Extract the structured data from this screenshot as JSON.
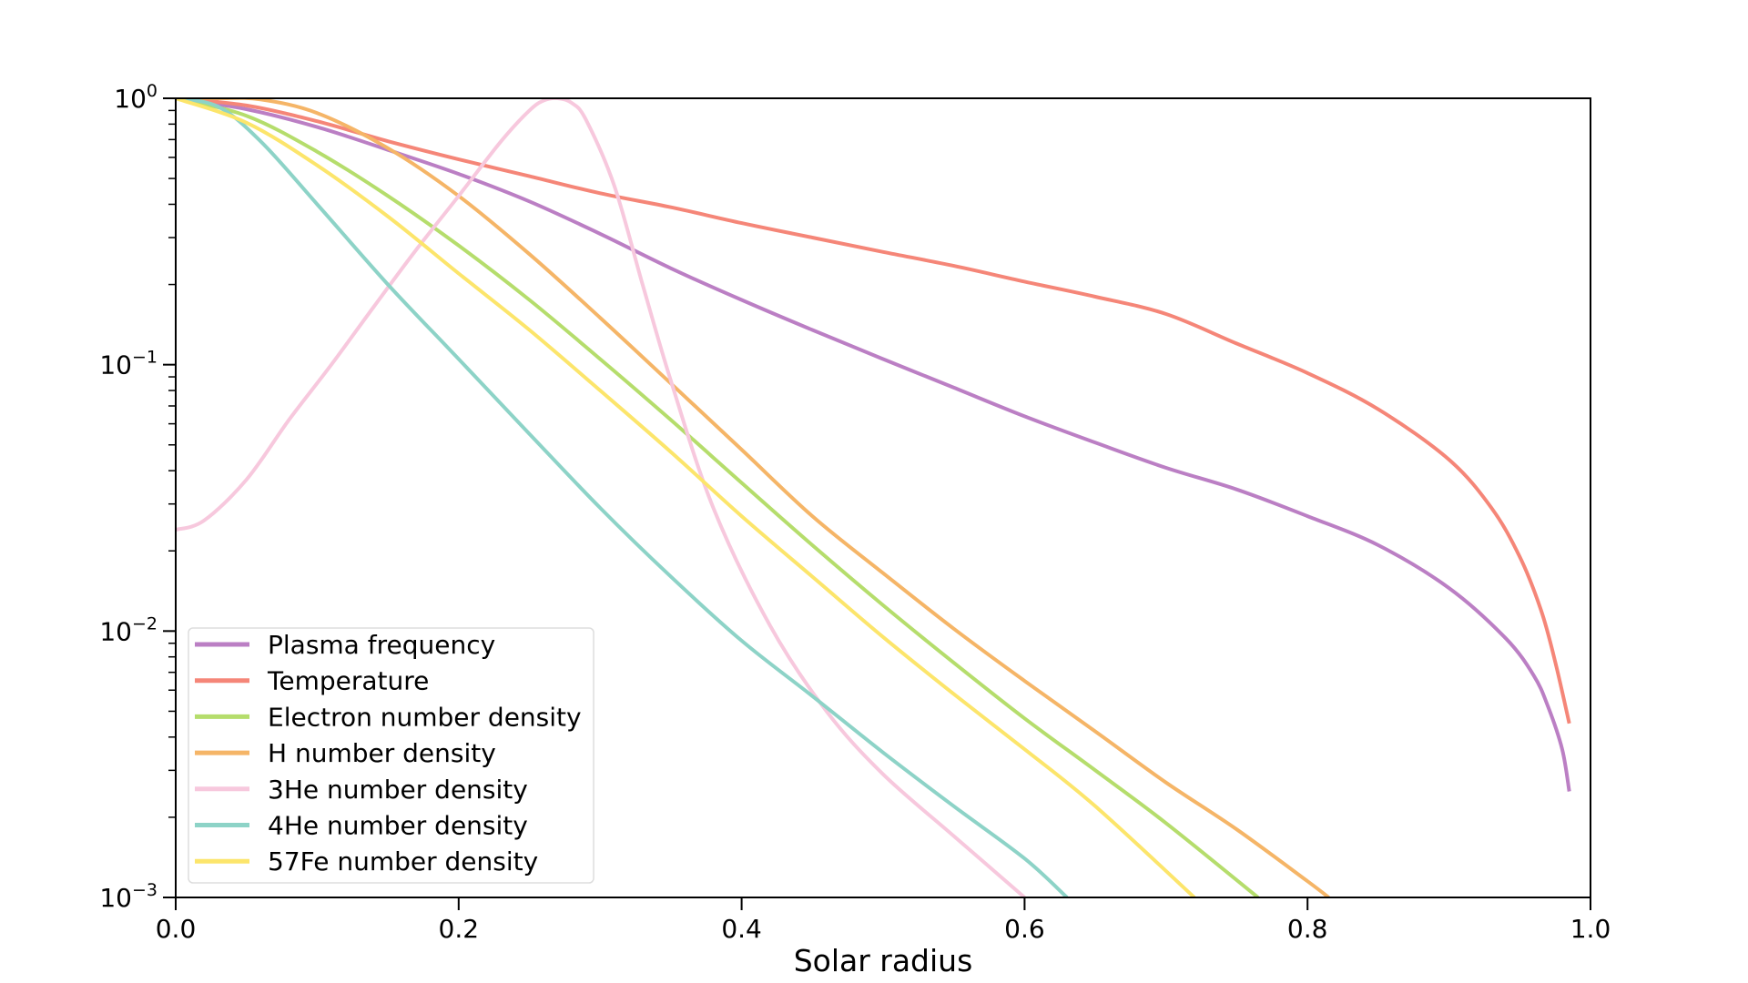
{
  "chart_data": {
    "type": "line",
    "title": "",
    "xlabel": "Solar radius",
    "ylabel": "",
    "xlim": [
      0.0,
      1.0
    ],
    "ylim": [
      0.001,
      1.0
    ],
    "yscale": "log",
    "grid": false,
    "legend_position": "lower-left",
    "x_ticks": [
      {
        "value": 0.0,
        "label": "0.0"
      },
      {
        "value": 0.2,
        "label": "0.2"
      },
      {
        "value": 0.4,
        "label": "0.4"
      },
      {
        "value": 0.6,
        "label": "0.6"
      },
      {
        "value": 0.8,
        "label": "0.8"
      },
      {
        "value": 1.0,
        "label": "1.0"
      }
    ],
    "y_ticks": [
      {
        "value": 1.0,
        "base": "10",
        "exp": "0"
      },
      {
        "value": 0.1,
        "base": "10",
        "exp": "−1"
      },
      {
        "value": 0.01,
        "base": "10",
        "exp": "−2"
      },
      {
        "value": 0.001,
        "base": "10",
        "exp": "−3"
      }
    ],
    "series": [
      {
        "name": "Plasma frequency",
        "color": "#bb7fc4",
        "x": [
          0.0,
          0.05,
          0.1,
          0.15,
          0.2,
          0.25,
          0.3,
          0.35,
          0.4,
          0.45,
          0.5,
          0.55,
          0.6,
          0.65,
          0.7,
          0.75,
          0.8,
          0.85,
          0.9,
          0.94,
          0.96,
          0.97,
          0.98,
          0.985
        ],
        "y": [
          1.0,
          0.91,
          0.78,
          0.64,
          0.52,
          0.41,
          0.31,
          0.23,
          0.175,
          0.135,
          0.105,
          0.082,
          0.064,
          0.051,
          0.041,
          0.034,
          0.027,
          0.021,
          0.0145,
          0.0094,
          0.0068,
          0.0052,
          0.0036,
          0.0025
        ]
      },
      {
        "name": "Temperature",
        "color": "#f58678",
        "x": [
          0.0,
          0.05,
          0.1,
          0.15,
          0.2,
          0.25,
          0.3,
          0.35,
          0.4,
          0.45,
          0.5,
          0.55,
          0.6,
          0.65,
          0.7,
          0.75,
          0.8,
          0.85,
          0.9,
          0.93,
          0.95,
          0.965,
          0.975,
          0.985
        ],
        "y": [
          1.0,
          0.94,
          0.82,
          0.69,
          0.59,
          0.51,
          0.44,
          0.39,
          0.34,
          0.3,
          0.265,
          0.235,
          0.205,
          0.18,
          0.155,
          0.12,
          0.093,
          0.068,
          0.044,
          0.029,
          0.019,
          0.012,
          0.0077,
          0.0045
        ]
      },
      {
        "name": "Electron number density",
        "color": "#b5dd6c",
        "x": [
          0.0,
          0.05,
          0.1,
          0.15,
          0.2,
          0.25,
          0.3,
          0.35,
          0.4,
          0.45,
          0.5,
          0.55,
          0.6,
          0.65,
          0.7,
          0.765
        ],
        "y": [
          1.0,
          0.86,
          0.63,
          0.43,
          0.28,
          0.175,
          0.105,
          0.062,
          0.036,
          0.021,
          0.0125,
          0.0076,
          0.0047,
          0.003,
          0.0019,
          0.001
        ]
      },
      {
        "name": "H number density",
        "color": "#f5b567",
        "x": [
          0.0,
          0.03,
          0.06,
          0.1,
          0.15,
          0.2,
          0.25,
          0.3,
          0.35,
          0.4,
          0.45,
          0.5,
          0.55,
          0.6,
          0.65,
          0.7,
          0.75,
          0.8,
          0.815
        ],
        "y": [
          1.0,
          1.0,
          0.99,
          0.88,
          0.65,
          0.43,
          0.26,
          0.15,
          0.085,
          0.048,
          0.027,
          0.0165,
          0.0102,
          0.0065,
          0.0042,
          0.0027,
          0.0018,
          0.00115,
          0.001
        ]
      },
      {
        "name": "3He number density",
        "color": "#f7c8dd",
        "x": [
          0.0,
          0.02,
          0.05,
          0.08,
          0.11,
          0.14,
          0.17,
          0.2,
          0.23,
          0.25,
          0.26,
          0.27,
          0.28,
          0.29,
          0.31,
          0.33,
          0.35,
          0.38,
          0.42,
          0.46,
          0.5,
          0.55,
          0.6
        ],
        "y": [
          0.024,
          0.026,
          0.037,
          0.062,
          0.1,
          0.165,
          0.27,
          0.43,
          0.69,
          0.9,
          0.98,
          1.0,
          0.96,
          0.83,
          0.47,
          0.2,
          0.087,
          0.029,
          0.0105,
          0.005,
          0.0029,
          0.0017,
          0.001
        ]
      },
      {
        "name": "4He number density",
        "color": "#8dd3c7",
        "x": [
          0.0,
          0.03,
          0.06,
          0.1,
          0.15,
          0.2,
          0.25,
          0.3,
          0.35,
          0.4,
          0.45,
          0.5,
          0.55,
          0.6,
          0.63
        ],
        "y": [
          1.0,
          0.93,
          0.69,
          0.4,
          0.2,
          0.105,
          0.055,
          0.029,
          0.016,
          0.0092,
          0.0057,
          0.0035,
          0.0022,
          0.0014,
          0.001
        ]
      },
      {
        "name": "57Fe number density",
        "color": "#fce56b",
        "x": [
          0.0,
          0.05,
          0.1,
          0.15,
          0.2,
          0.25,
          0.3,
          0.35,
          0.4,
          0.45,
          0.5,
          0.55,
          0.6,
          0.65,
          0.72
        ],
        "y": [
          1.0,
          0.81,
          0.56,
          0.36,
          0.22,
          0.135,
          0.08,
          0.047,
          0.027,
          0.016,
          0.0095,
          0.0058,
          0.0036,
          0.0022,
          0.001
        ]
      }
    ]
  }
}
